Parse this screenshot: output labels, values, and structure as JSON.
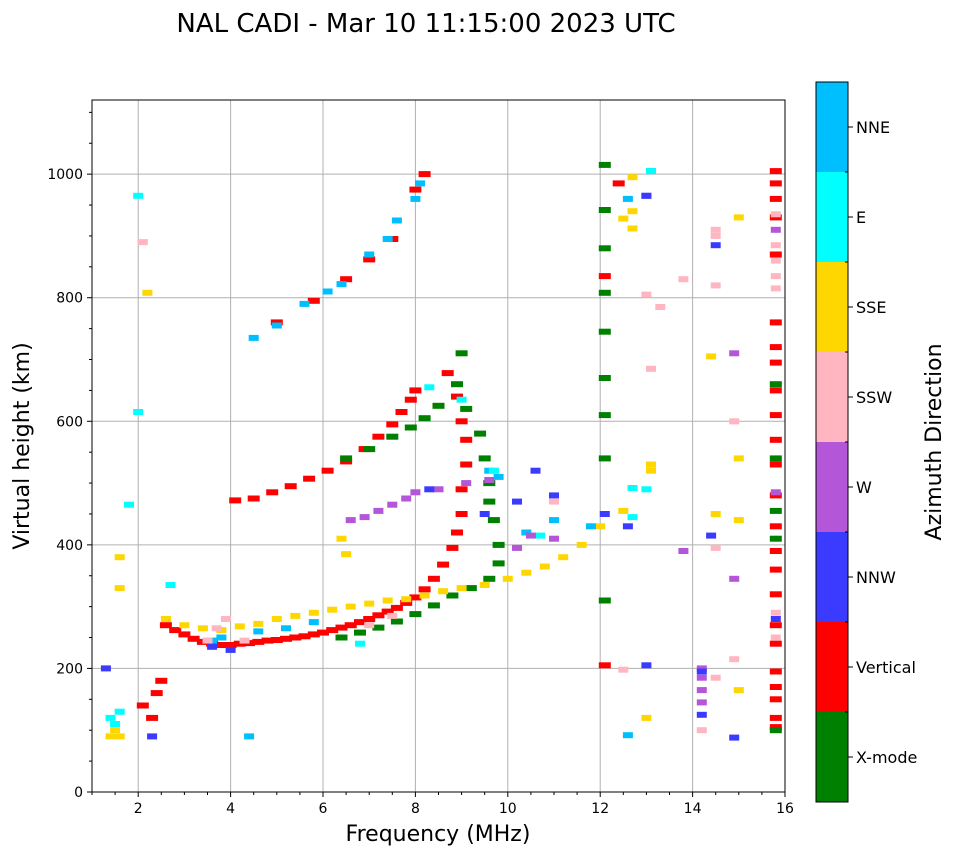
{
  "chart_data": {
    "type": "scatter",
    "title": "NAL CADI - Mar 10 11:15:00 2023 UTC",
    "xlabel": "Frequency (MHz)",
    "ylabel": "Virtual height (km)",
    "xlim": [
      1,
      16
    ],
    "ylim": [
      0,
      1120
    ],
    "xticks": [
      2,
      4,
      6,
      8,
      10,
      12,
      14,
      16
    ],
    "yticks": [
      0,
      200,
      400,
      600,
      800,
      1000
    ],
    "grid": true,
    "colorbar": {
      "title": "Azimuth Direction",
      "categories": [
        {
          "name": "X-mode",
          "color": "#008000"
        },
        {
          "name": "Vertical",
          "color": "#ff0000"
        },
        {
          "name": "NNW",
          "color": "#3b3bff"
        },
        {
          "name": "W",
          "color": "#b456d8"
        },
        {
          "name": "SSW",
          "color": "#ffb6c1"
        },
        {
          "name": "SSE",
          "color": "#ffd700"
        },
        {
          "name": "E",
          "color": "#00ffff"
        },
        {
          "name": "NNE",
          "color": "#00bfff"
        }
      ]
    },
    "series": [
      {
        "name": "Vertical",
        "color": "#ff0000",
        "points": [
          [
            2.6,
            270
          ],
          [
            2.8,
            262
          ],
          [
            3.0,
            255
          ],
          [
            3.2,
            248
          ],
          [
            3.4,
            243
          ],
          [
            3.6,
            240
          ],
          [
            3.8,
            238
          ],
          [
            4.0,
            238
          ],
          [
            4.2,
            240
          ],
          [
            4.4,
            241
          ],
          [
            4.6,
            243
          ],
          [
            4.8,
            245
          ],
          [
            5.0,
            246
          ],
          [
            5.2,
            248
          ],
          [
            5.4,
            250
          ],
          [
            5.6,
            252
          ],
          [
            5.8,
            255
          ],
          [
            6.0,
            258
          ],
          [
            6.2,
            262
          ],
          [
            6.4,
            266
          ],
          [
            6.6,
            270
          ],
          [
            6.8,
            275
          ],
          [
            7.0,
            280
          ],
          [
            7.2,
            286
          ],
          [
            7.4,
            292
          ],
          [
            7.6,
            298
          ],
          [
            7.8,
            306
          ],
          [
            8.0,
            315
          ],
          [
            8.2,
            328
          ],
          [
            8.4,
            345
          ],
          [
            8.6,
            368
          ],
          [
            8.8,
            395
          ],
          [
            8.9,
            420
          ],
          [
            9.0,
            450
          ],
          [
            9.0,
            490
          ],
          [
            9.1,
            530
          ],
          [
            9.1,
            570
          ],
          [
            9.0,
            600
          ],
          [
            8.9,
            640
          ],
          [
            8.7,
            678
          ],
          [
            4.1,
            472
          ],
          [
            4.5,
            475
          ],
          [
            4.9,
            485
          ],
          [
            5.3,
            495
          ],
          [
            5.7,
            507
          ],
          [
            6.1,
            520
          ],
          [
            6.5,
            535
          ],
          [
            6.9,
            555
          ],
          [
            7.2,
            575
          ],
          [
            7.5,
            595
          ],
          [
            7.7,
            615
          ],
          [
            7.9,
            635
          ],
          [
            8.0,
            650
          ],
          [
            5.0,
            760
          ],
          [
            5.8,
            795
          ],
          [
            6.5,
            830
          ],
          [
            7.0,
            862
          ],
          [
            7.5,
            895
          ],
          [
            8.0,
            975
          ],
          [
            8.2,
            1000
          ],
          [
            2.1,
            140
          ],
          [
            2.3,
            120
          ],
          [
            2.4,
            160
          ],
          [
            2.5,
            180
          ],
          [
            12.1,
            205
          ],
          [
            12.1,
            835
          ],
          [
            12.4,
            985
          ],
          [
            15.8,
            1005
          ],
          [
            15.8,
            985
          ],
          [
            15.8,
            960
          ],
          [
            15.8,
            930
          ],
          [
            15.8,
            870
          ],
          [
            15.8,
            760
          ],
          [
            15.8,
            720
          ],
          [
            15.8,
            695
          ],
          [
            15.8,
            650
          ],
          [
            15.8,
            610
          ],
          [
            15.8,
            570
          ],
          [
            15.8,
            530
          ],
          [
            15.8,
            480
          ],
          [
            15.8,
            430
          ],
          [
            15.8,
            390
          ],
          [
            15.8,
            360
          ],
          [
            15.8,
            320
          ],
          [
            15.8,
            270
          ],
          [
            15.8,
            240
          ],
          [
            15.8,
            195
          ],
          [
            15.8,
            170
          ],
          [
            15.8,
            150
          ],
          [
            15.8,
            120
          ],
          [
            15.8,
            105
          ]
        ]
      },
      {
        "name": "X-mode",
        "color": "#008000",
        "points": [
          [
            6.4,
            250
          ],
          [
            6.8,
            258
          ],
          [
            7.2,
            266
          ],
          [
            7.6,
            276
          ],
          [
            8.0,
            288
          ],
          [
            8.4,
            302
          ],
          [
            8.8,
            318
          ],
          [
            9.2,
            330
          ],
          [
            9.6,
            345
          ],
          [
            9.8,
            370
          ],
          [
            9.8,
            400
          ],
          [
            9.7,
            440
          ],
          [
            9.6,
            470
          ],
          [
            9.6,
            500
          ],
          [
            9.5,
            540
          ],
          [
            9.4,
            580
          ],
          [
            9.1,
            620
          ],
          [
            8.9,
            660
          ],
          [
            9.0,
            710
          ],
          [
            6.5,
            540
          ],
          [
            7.0,
            555
          ],
          [
            7.5,
            575
          ],
          [
            7.9,
            590
          ],
          [
            8.2,
            605
          ],
          [
            8.5,
            625
          ],
          [
            12.1,
            310
          ],
          [
            12.1,
            540
          ],
          [
            12.1,
            610
          ],
          [
            12.1,
            670
          ],
          [
            12.1,
            745
          ],
          [
            12.1,
            808
          ],
          [
            12.1,
            880
          ],
          [
            12.1,
            942
          ],
          [
            12.1,
            1015
          ],
          [
            15.8,
            660
          ],
          [
            15.8,
            540
          ],
          [
            15.8,
            455
          ],
          [
            15.8,
            410
          ],
          [
            15.8,
            100
          ]
        ]
      },
      {
        "name": "SSE",
        "color": "#ffd700",
        "points": [
          [
            2.6,
            280
          ],
          [
            3.0,
            270
          ],
          [
            3.4,
            265
          ],
          [
            3.8,
            262
          ],
          [
            4.2,
            268
          ],
          [
            4.6,
            272
          ],
          [
            5.0,
            280
          ],
          [
            5.4,
            285
          ],
          [
            5.8,
            290
          ],
          [
            6.2,
            295
          ],
          [
            6.6,
            300
          ],
          [
            7.0,
            305
          ],
          [
            7.4,
            310
          ],
          [
            7.8,
            312
          ],
          [
            8.2,
            318
          ],
          [
            8.6,
            325
          ],
          [
            9.0,
            330
          ],
          [
            9.5,
            335
          ],
          [
            10.0,
            345
          ],
          [
            10.4,
            355
          ],
          [
            10.8,
            365
          ],
          [
            11.2,
            380
          ],
          [
            11.6,
            400
          ],
          [
            12.0,
            430
          ],
          [
            12.5,
            455
          ],
          [
            6.4,
            410
          ],
          [
            6.5,
            385
          ],
          [
            2.2,
            808
          ],
          [
            1.6,
            380
          ],
          [
            1.6,
            330
          ],
          [
            1.5,
            100
          ],
          [
            1.4,
            90
          ],
          [
            1.6,
            90
          ],
          [
            12.7,
            995
          ],
          [
            12.7,
            940
          ],
          [
            12.7,
            912
          ],
          [
            12.5,
            928
          ],
          [
            13.1,
            530
          ],
          [
            13.1,
            520
          ],
          [
            13.0,
            120
          ],
          [
            14.4,
            705
          ],
          [
            14.5,
            450
          ],
          [
            15.0,
            930
          ],
          [
            15.0,
            540
          ],
          [
            15.0,
            440
          ],
          [
            15.0,
            165
          ]
        ]
      },
      {
        "name": "NNE",
        "color": "#00bfff",
        "points": [
          [
            4.5,
            735
          ],
          [
            5.0,
            755
          ],
          [
            5.6,
            790
          ],
          [
            6.1,
            810
          ],
          [
            6.4,
            822
          ],
          [
            7.0,
            870
          ],
          [
            7.4,
            895
          ],
          [
            7.6,
            925
          ],
          [
            8.0,
            960
          ],
          [
            8.1,
            985
          ],
          [
            3.6,
            245
          ],
          [
            3.8,
            250
          ],
          [
            4.6,
            260
          ],
          [
            5.2,
            265
          ],
          [
            5.8,
            275
          ],
          [
            9.6,
            520
          ],
          [
            9.8,
            510
          ],
          [
            10.4,
            420
          ],
          [
            11.0,
            440
          ],
          [
            11.8,
            430
          ],
          [
            12.6,
            92
          ],
          [
            12.6,
            960
          ],
          [
            4.4,
            90
          ],
          [
            13.1,
            1005
          ]
        ]
      },
      {
        "name": "E",
        "color": "#00ffff",
        "points": [
          [
            1.4,
            120
          ],
          [
            1.5,
            110
          ],
          [
            1.6,
            130
          ],
          [
            2.0,
            965
          ],
          [
            2.0,
            615
          ],
          [
            1.8,
            465
          ],
          [
            8.3,
            655
          ],
          [
            9.0,
            635
          ],
          [
            9.7,
            520
          ],
          [
            10.7,
            415
          ],
          [
            12.7,
            492
          ],
          [
            12.7,
            445
          ],
          [
            13.0,
            490
          ],
          [
            13.1,
            1005
          ],
          [
            2.7,
            335
          ],
          [
            6.8,
            240
          ]
        ]
      },
      {
        "name": "W",
        "color": "#b456d8",
        "points": [
          [
            6.6,
            440
          ],
          [
            6.9,
            445
          ],
          [
            7.2,
            455
          ],
          [
            7.5,
            465
          ],
          [
            7.8,
            475
          ],
          [
            8.0,
            485
          ],
          [
            8.5,
            490
          ],
          [
            9.1,
            500
          ],
          [
            9.6,
            505
          ],
          [
            10.2,
            395
          ],
          [
            10.5,
            415
          ],
          [
            11.0,
            410
          ],
          [
            13.8,
            390
          ],
          [
            14.2,
            200
          ],
          [
            14.2,
            185
          ],
          [
            14.2,
            165
          ],
          [
            14.2,
            145
          ],
          [
            14.9,
            710
          ],
          [
            14.9,
            345
          ],
          [
            15.8,
            910
          ],
          [
            15.8,
            485
          ],
          [
            13.0,
            965
          ]
        ]
      },
      {
        "name": "SSW",
        "color": "#ffb6c1",
        "points": [
          [
            3.5,
            245
          ],
          [
            3.7,
            265
          ],
          [
            3.9,
            280
          ],
          [
            4.3,
            245
          ],
          [
            7.0,
            270
          ],
          [
            7.5,
            285
          ],
          [
            11.0,
            470
          ],
          [
            12.5,
            198
          ],
          [
            13.0,
            805
          ],
          [
            13.3,
            785
          ],
          [
            13.1,
            685
          ],
          [
            13.8,
            830
          ],
          [
            14.5,
            910
          ],
          [
            14.5,
            900
          ],
          [
            14.5,
            820
          ],
          [
            14.5,
            395
          ],
          [
            14.5,
            185
          ],
          [
            14.9,
            600
          ],
          [
            14.9,
            215
          ],
          [
            15.8,
            935
          ],
          [
            15.8,
            885
          ],
          [
            15.8,
            860
          ],
          [
            15.8,
            835
          ],
          [
            15.8,
            815
          ],
          [
            15.8,
            290
          ],
          [
            15.8,
            250
          ],
          [
            14.2,
            100
          ],
          [
            2.1,
            890
          ]
        ]
      },
      {
        "name": "NNW",
        "color": "#3b3bff",
        "points": [
          [
            3.6,
            235
          ],
          [
            4.0,
            230
          ],
          [
            8.3,
            490
          ],
          [
            9.5,
            450
          ],
          [
            10.2,
            470
          ],
          [
            10.6,
            520
          ],
          [
            11.0,
            480
          ],
          [
            12.1,
            450
          ],
          [
            12.6,
            430
          ],
          [
            14.4,
            415
          ],
          [
            14.5,
            885
          ],
          [
            14.2,
            125
          ],
          [
            14.2,
            195
          ],
          [
            14.9,
            88
          ],
          [
            15.8,
            280
          ],
          [
            13.0,
            205
          ],
          [
            13.0,
            965
          ],
          [
            2.3,
            90
          ],
          [
            1.3,
            200
          ]
        ]
      }
    ]
  }
}
